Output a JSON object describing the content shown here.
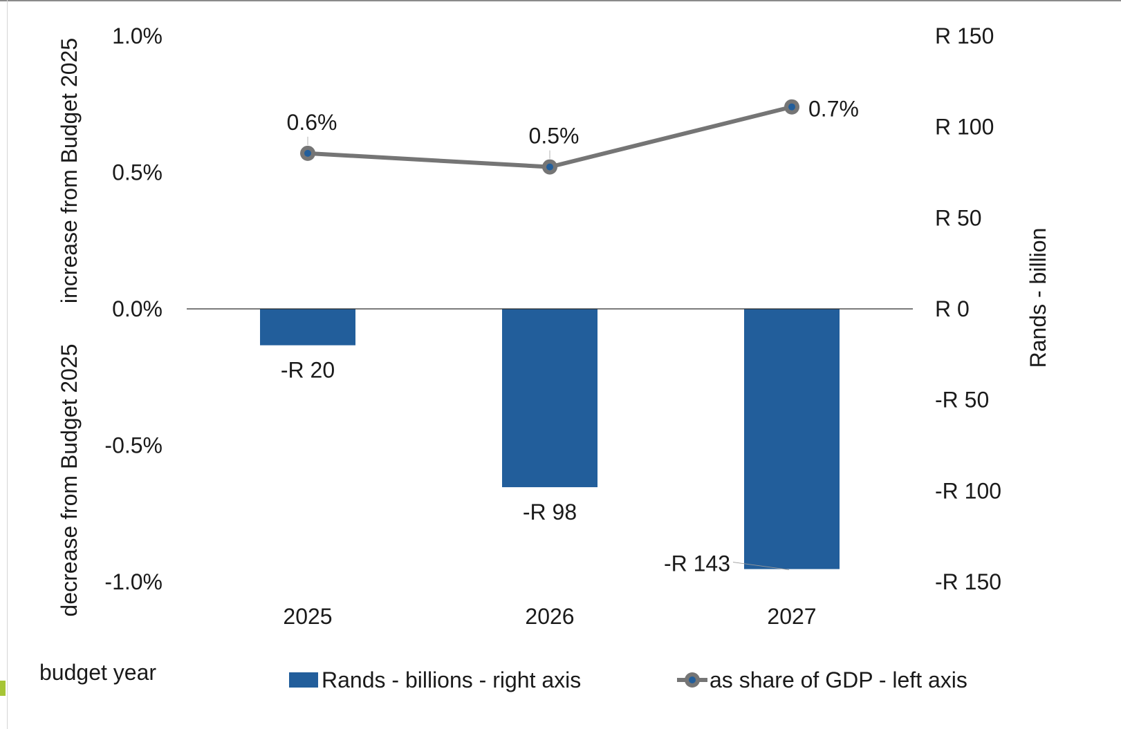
{
  "chart_data": {
    "type": "bar",
    "categories": [
      "2025",
      "2026",
      "2027"
    ],
    "series": [
      {
        "name": "Rands - billions - right axis",
        "kind": "bar",
        "axis": "right",
        "values": [
          -20,
          -98,
          -143
        ],
        "labels": [
          "-R 20",
          "-R 98",
          "-R 143"
        ],
        "color": "#225e9b"
      },
      {
        "name": "as share of GDP - left axis",
        "kind": "line",
        "axis": "left",
        "values": [
          0.57,
          0.52,
          0.74
        ],
        "labels": [
          "0.6%",
          "0.5%",
          "0.7%"
        ],
        "color": "#757575",
        "marker_color": "#225e9b"
      }
    ],
    "left_axis": {
      "ylim": [
        -1.0,
        1.0
      ],
      "ticks": [
        1.0,
        0.5,
        0.0,
        -0.5,
        -1.0
      ],
      "tick_labels": [
        "1.0%",
        "0.5%",
        "0.0%",
        "-0.5%",
        "-1.0%"
      ],
      "label_upper": "increase from Budget 2025",
      "label_lower": "decrease from Budget 2025"
    },
    "right_axis": {
      "ylim": [
        -150,
        150
      ],
      "ticks": [
        150,
        100,
        50,
        0,
        -50,
        -100,
        -150
      ],
      "tick_labels": [
        "R 150",
        "R 100",
        "R 50",
        "R 0",
        "-R 50",
        "-R 100",
        "-R 150"
      ],
      "label": "Rands - billion"
    },
    "xlabel": "budget year",
    "legend_position": "bottom",
    "grid": false
  },
  "colors": {
    "accent_mark": "#a6c536",
    "axis_line": "#2a2a2a"
  }
}
